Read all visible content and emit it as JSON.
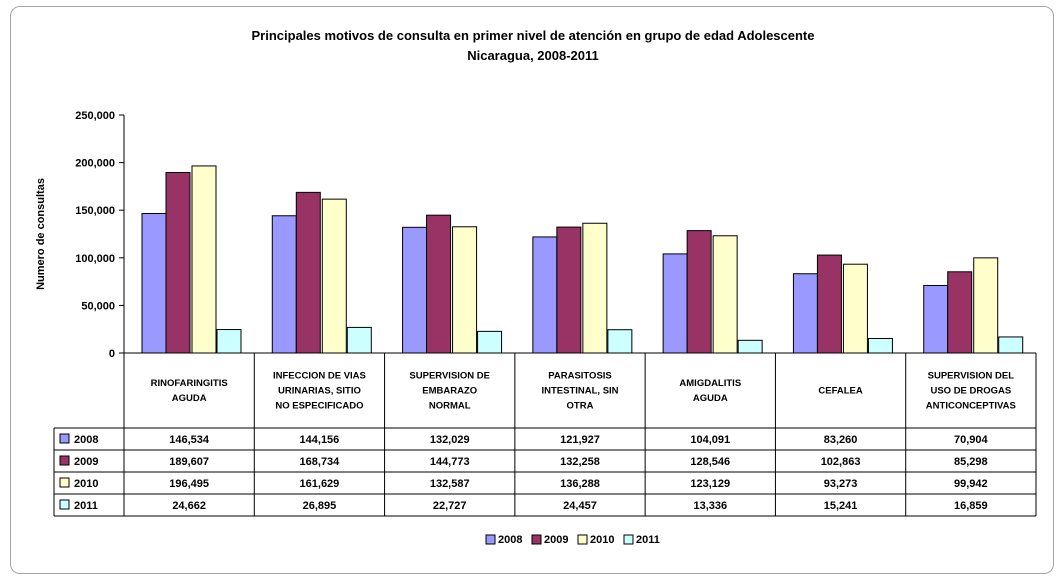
{
  "chart_data": {
    "type": "bar",
    "title_lines": [
      "Principales motivos de consulta en primer nivel de atención en grupo de edad Adolescente",
      "Nicaragua, 2008-2011"
    ],
    "ylabel": "Numero de consultas",
    "ylim": [
      0,
      250000
    ],
    "yticks": [
      "0",
      "50,000",
      "100,000",
      "150,000",
      "200,000",
      "250,000"
    ],
    "ytick_values": [
      0,
      50000,
      100000,
      150000,
      200000,
      250000
    ],
    "grid": false,
    "legend_position": "bottom",
    "categories": [
      [
        "RINOFARINGITIS",
        "AGUDA"
      ],
      [
        "INFECCION DE VIAS",
        "URINARIAS, SITIO",
        "NO ESPECIFICADO"
      ],
      [
        "SUPERVISION DE",
        "EMBARAZO",
        "NORMAL"
      ],
      [
        "PARASITOSIS",
        "INTESTINAL, SIN",
        "OTRA"
      ],
      [
        "AMIGDALITIS",
        "AGUDA"
      ],
      [
        "CEFALEA"
      ],
      [
        "SUPERVISION DEL",
        "USO DE DROGAS",
        "ANTICONCEPTIVAS"
      ]
    ],
    "series": [
      {
        "name": "2008",
        "color": "#9999ff",
        "values": [
          146534,
          144156,
          132029,
          121927,
          104091,
          83260,
          70904
        ],
        "labels": [
          "146,534",
          "144,156",
          "132,029",
          "121,927",
          "104,091",
          "83,260",
          "70,904"
        ]
      },
      {
        "name": "2009",
        "color": "#993366",
        "values": [
          189607,
          168734,
          144773,
          132258,
          128546,
          102863,
          85298
        ],
        "labels": [
          "189,607",
          "168,734",
          "144,773",
          "132,258",
          "128,546",
          "102,863",
          "85,298"
        ]
      },
      {
        "name": "2010",
        "color": "#ffffcc",
        "values": [
          196495,
          161629,
          132587,
          136288,
          123129,
          93273,
          99942
        ],
        "labels": [
          "196,495",
          "161,629",
          "132,587",
          "136,288",
          "123,129",
          "93,273",
          "99,942"
        ]
      },
      {
        "name": "2011",
        "color": "#ccffff",
        "values": [
          24662,
          26895,
          22727,
          24457,
          13336,
          15241,
          16859
        ],
        "labels": [
          "24,662",
          "26,895",
          "22,727",
          "24,457",
          "13,336",
          "15,241",
          "16,859"
        ]
      }
    ]
  }
}
